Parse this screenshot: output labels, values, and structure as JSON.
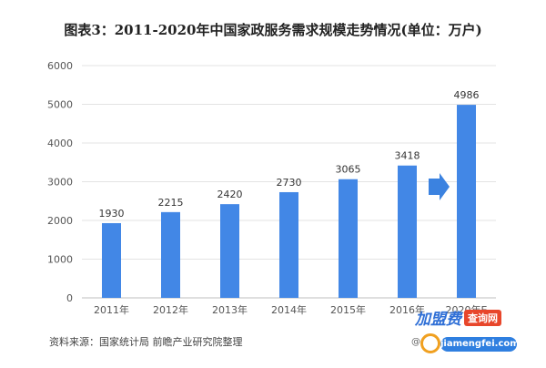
{
  "chart_data": {
    "type": "bar",
    "title": "图表3：2011-2020年中国家政服务需求规模走势情况(单位：万户)",
    "categories": [
      "2011年",
      "2012年",
      "2013年",
      "2014年",
      "2015年",
      "2016年",
      "2020年E"
    ],
    "values": [
      1930,
      2215,
      2420,
      2730,
      3065,
      3418,
      4986
    ],
    "ylim": [
      0,
      6000
    ],
    "yticks": [
      0,
      1000,
      2000,
      3000,
      4000,
      5000,
      6000
    ],
    "grid": true,
    "bar_color": "#4287e6",
    "arrow_color": "#3b82e0"
  },
  "source": "资料来源：国家统计局 前瞻产业研究院整理",
  "watermark": {
    "brand": "加盟费",
    "badge": "查询网",
    "at": "@",
    "url": "jiamengfei.com"
  }
}
